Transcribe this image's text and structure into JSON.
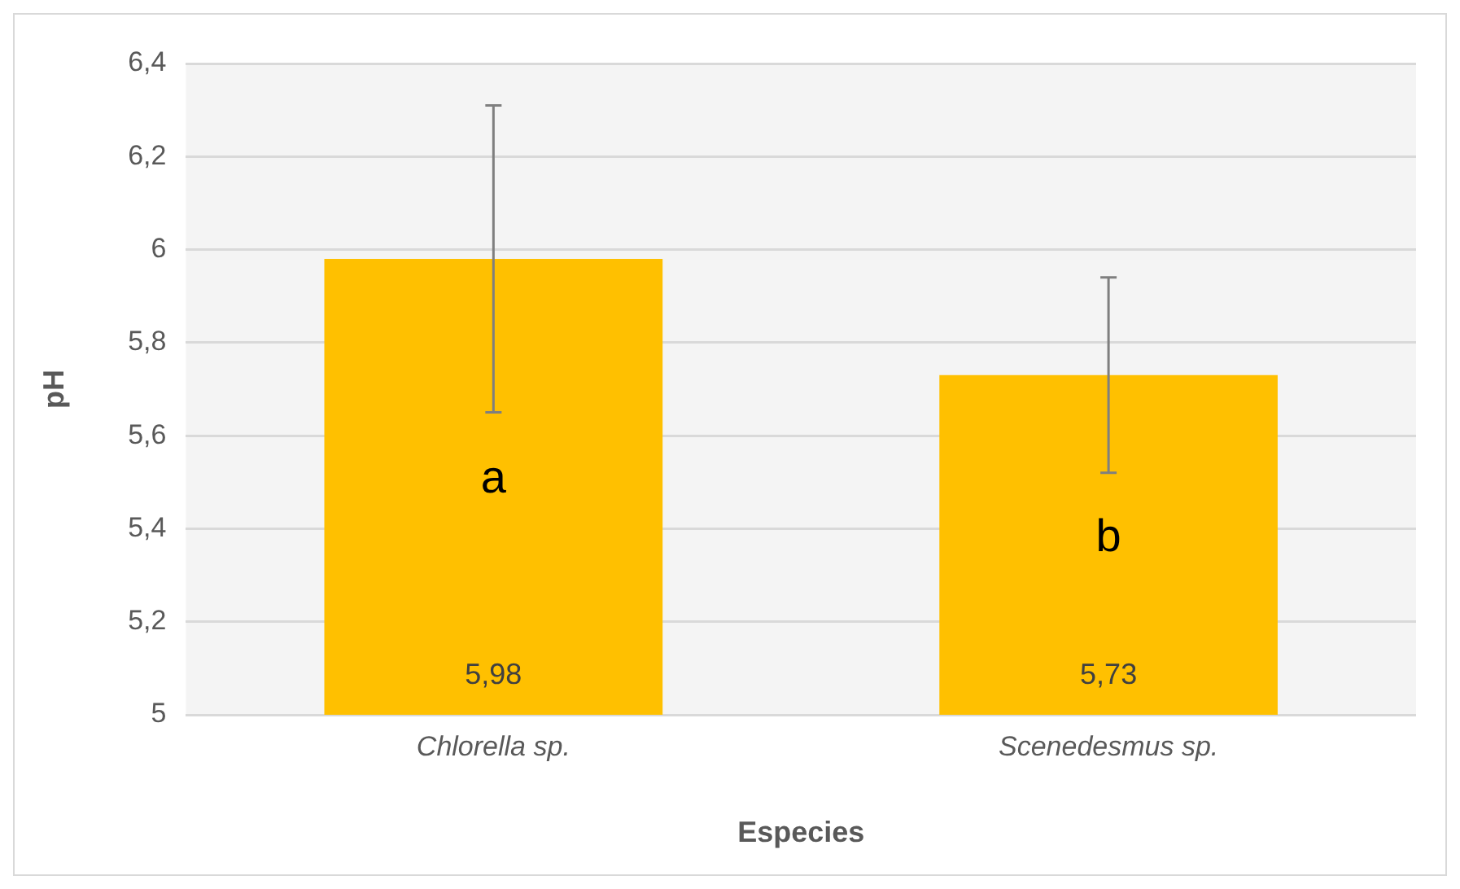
{
  "chart_data": {
    "type": "bar",
    "xlabel": "Especies",
    "ylabel": "pH",
    "categories": [
      "Chlorella sp.",
      "Scenedesmus sp."
    ],
    "values": [
      5.98,
      5.73
    ],
    "color": "#ffc000",
    "errors": [
      0.33,
      0.21
    ],
    "value_labels": [
      "5,98",
      "5,73"
    ],
    "annotations": [
      "a",
      "b"
    ],
    "ylim": [
      5,
      6.4
    ],
    "yticks": [
      5,
      {
        "value": 5.2,
        "label": "5,2"
      },
      {
        "value": 5.4,
        "label": "5,4"
      },
      {
        "value": 5.6,
        "label": "5,6"
      },
      {
        "value": 5.8,
        "label": "5,8"
      },
      6,
      {
        "value": 6.2,
        "label": "6,2"
      },
      {
        "value": 6.4,
        "label": "6,4"
      }
    ],
    "grid": "y",
    "legend": false
  }
}
